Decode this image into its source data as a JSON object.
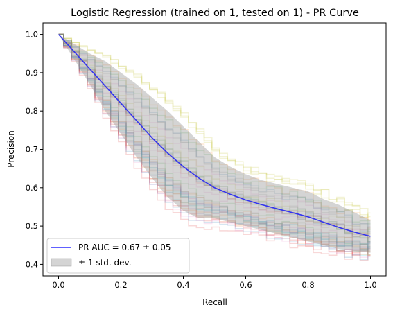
{
  "chart_data": {
    "type": "line",
    "title": "Logistic Regression (trained on 1, tested on 1) -  PR Curve",
    "xlabel": "Recall",
    "ylabel": "Precision",
    "xlim": [
      -0.05,
      1.05
    ],
    "ylim": [
      0.37,
      1.03
    ],
    "xticks": [
      "0.0",
      "0.2",
      "0.4",
      "0.6",
      "0.8",
      "1.0"
    ],
    "yticks": [
      "0.4",
      "0.5",
      "0.6",
      "0.7",
      "0.8",
      "0.9",
      "1.0"
    ],
    "grid": false,
    "legend_position": "lower-left",
    "legend": [
      {
        "label": "PR AUC = 0.67 ± 0.05",
        "kind": "line",
        "color": "#2b2bff"
      },
      {
        "label": "± 1 std. dev.",
        "kind": "band",
        "color": "#b8b8b8"
      }
    ],
    "mean_curve": {
      "color": "#3333ee",
      "x": [
        0.0,
        0.05,
        0.1,
        0.15,
        0.2,
        0.25,
        0.3,
        0.35,
        0.4,
        0.45,
        0.5,
        0.55,
        0.6,
        0.65,
        0.7,
        0.75,
        0.8,
        0.85,
        0.9,
        0.95,
        1.0
      ],
      "y": [
        1.0,
        0.955,
        0.91,
        0.865,
        0.82,
        0.775,
        0.73,
        0.69,
        0.655,
        0.625,
        0.6,
        0.583,
        0.568,
        0.556,
        0.545,
        0.535,
        0.524,
        0.51,
        0.496,
        0.484,
        0.473
      ]
    },
    "std_band": {
      "color": "#a0a0a0",
      "x": [
        0.0,
        0.05,
        0.1,
        0.15,
        0.2,
        0.25,
        0.3,
        0.35,
        0.4,
        0.45,
        0.5,
        0.55,
        0.6,
        0.65,
        0.7,
        0.75,
        0.8,
        0.85,
        0.9,
        0.95,
        1.0
      ],
      "upper": [
        1.0,
        0.975,
        0.95,
        0.93,
        0.9,
        0.87,
        0.835,
        0.8,
        0.76,
        0.72,
        0.68,
        0.655,
        0.635,
        0.62,
        0.61,
        0.6,
        0.59,
        0.57,
        0.555,
        0.535,
        0.515
      ],
      "lower": [
        1.0,
        0.935,
        0.87,
        0.8,
        0.74,
        0.68,
        0.625,
        0.575,
        0.54,
        0.52,
        0.52,
        0.51,
        0.5,
        0.49,
        0.48,
        0.47,
        0.46,
        0.45,
        0.44,
        0.435,
        0.43
      ]
    },
    "fold_curves": {
      "count": 40,
      "colors": [
        "#1f77b4",
        "#ff7f0e",
        "#2ca02c",
        "#d62728",
        "#9467bd",
        "#8c564b",
        "#e377c2",
        "#7f7f7f",
        "#bcbd22",
        "#17becf"
      ],
      "opacity": 0.18
    }
  }
}
